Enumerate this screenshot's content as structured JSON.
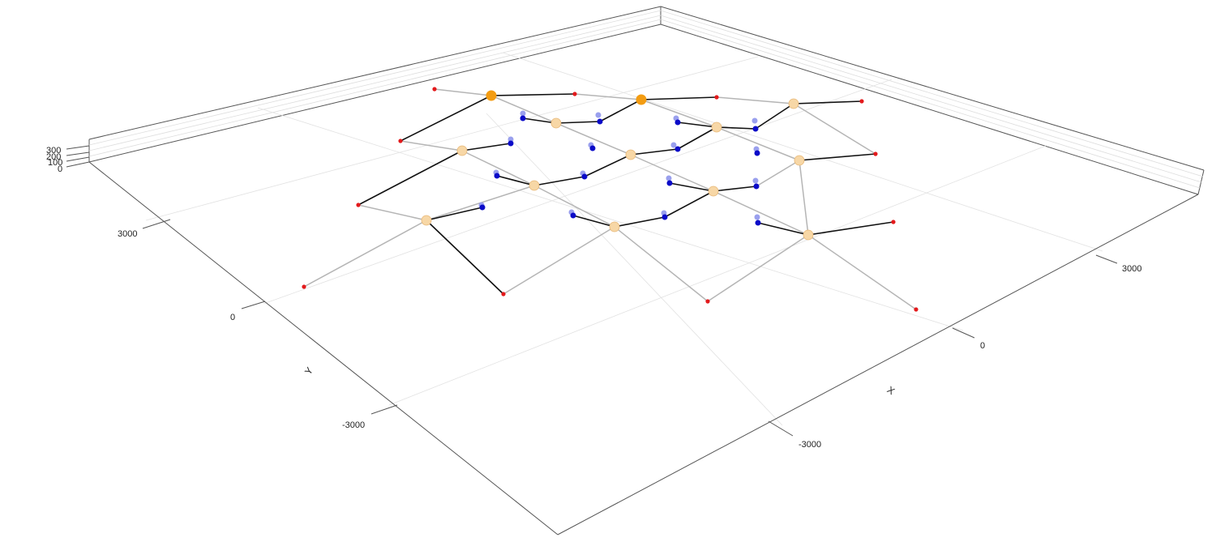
{
  "chart_data": {
    "type": "scatter",
    "projection": "3d-isometric",
    "grid": true,
    "axes": {
      "x": {
        "label": "X",
        "ticks": [
          "-3000",
          "0",
          "3000"
        ]
      },
      "y": {
        "label": "Y",
        "ticks": [
          "-3000",
          "0",
          "3000"
        ]
      },
      "z": {
        "label": "",
        "ticks": [
          "0",
          "100",
          "200",
          "300"
        ]
      }
    },
    "colors": {
      "support": "#e31a1c",
      "node_highlight": "#f39c12",
      "node": "#f7d7a6",
      "cable_dark": "#0b0bc8",
      "cable_light": "#9aa0ee",
      "edge_dark": "#111111",
      "edge_light": "#b5b5b5"
    }
  }
}
